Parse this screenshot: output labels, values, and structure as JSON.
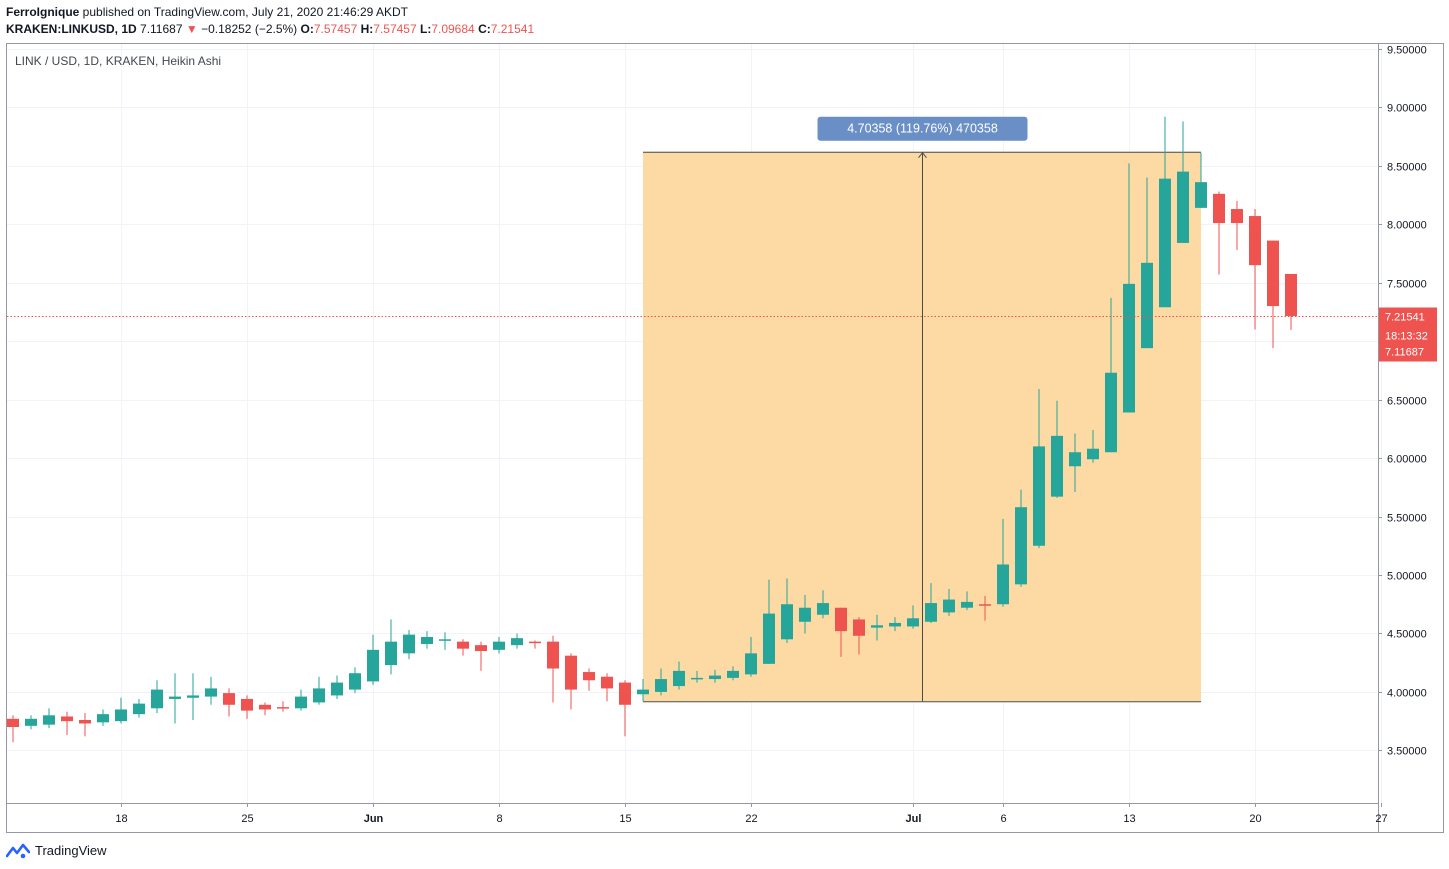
{
  "header": {
    "author": "FerroIgnique",
    "published": " published on TradingView.com, July 21, 2020 21:46:29 AKDT",
    "symbol": "KRAKEN:LINKUSD, 1D",
    "last": "7.11687",
    "change": "−0.18252 (−2.5%)",
    "o_label": "O:",
    "o_value": "7.57457",
    "h_label": "H:",
    "h_value": "7.57457",
    "l_label": "L:",
    "l_value": "7.09684",
    "c_label": "C:",
    "c_value": "7.21541"
  },
  "footer": {
    "brand": "TradingView"
  },
  "colors": {
    "up": "#26a69a",
    "down": "#ef5350",
    "range_fill": "#fdd89e",
    "range_label": "#6a8fc7"
  },
  "chart_data": {
    "type": "candlestick",
    "legend_text": "LINK / USD, 1D, KRAKEN, Heikin Ashi",
    "y_axis": {
      "min": 3.05,
      "max": 9.55,
      "ticks": [
        "3.50000",
        "4.00000",
        "4.50000",
        "5.00000",
        "5.50000",
        "6.00000",
        "6.50000",
        "7.00000",
        "7.50000",
        "8.00000",
        "8.50000",
        "9.00000",
        "9.50000"
      ]
    },
    "x_axis": {
      "start_date": "2020-05-12",
      "ticks": [
        {
          "i": 6,
          "label": "18"
        },
        {
          "i": 13,
          "label": "25"
        },
        {
          "i": 20,
          "label": "Jun"
        },
        {
          "i": 27,
          "label": "8"
        },
        {
          "i": 34,
          "label": "15"
        },
        {
          "i": 41,
          "label": "22"
        },
        {
          "i": 50,
          "label": "Jul"
        },
        {
          "i": 55,
          "label": "6"
        },
        {
          "i": 62,
          "label": "13"
        },
        {
          "i": 69,
          "label": "20"
        },
        {
          "i": 76,
          "label": "27"
        }
      ]
    },
    "candles": [
      {
        "date": "2020-05-12",
        "o": 3.77,
        "h": 3.8,
        "l": 3.57,
        "c": 3.7
      },
      {
        "date": "2020-05-13",
        "o": 3.71,
        "h": 3.8,
        "l": 3.68,
        "c": 3.77
      },
      {
        "date": "2020-05-14",
        "o": 3.72,
        "h": 3.86,
        "l": 3.69,
        "c": 3.8
      },
      {
        "date": "2020-05-15",
        "o": 3.79,
        "h": 3.83,
        "l": 3.63,
        "c": 3.75
      },
      {
        "date": "2020-05-16",
        "o": 3.76,
        "h": 3.82,
        "l": 3.62,
        "c": 3.73
      },
      {
        "date": "2020-05-17",
        "o": 3.74,
        "h": 3.85,
        "l": 3.71,
        "c": 3.81
      },
      {
        "date": "2020-05-18",
        "o": 3.75,
        "h": 3.95,
        "l": 3.73,
        "c": 3.85
      },
      {
        "date": "2020-05-19",
        "o": 3.81,
        "h": 3.94,
        "l": 3.78,
        "c": 3.9
      },
      {
        "date": "2020-05-20",
        "o": 3.86,
        "h": 4.1,
        "l": 3.82,
        "c": 4.02
      },
      {
        "date": "2020-05-21",
        "o": 3.94,
        "h": 4.16,
        "l": 3.73,
        "c": 3.96
      },
      {
        "date": "2020-05-22",
        "o": 3.95,
        "h": 4.16,
        "l": 3.76,
        "c": 3.97
      },
      {
        "date": "2020-05-23",
        "o": 3.96,
        "h": 4.13,
        "l": 3.89,
        "c": 4.03
      },
      {
        "date": "2020-05-24",
        "o": 3.99,
        "h": 4.03,
        "l": 3.79,
        "c": 3.89
      },
      {
        "date": "2020-05-25",
        "o": 3.94,
        "h": 3.97,
        "l": 3.77,
        "c": 3.84
      },
      {
        "date": "2020-05-26",
        "o": 3.89,
        "h": 3.91,
        "l": 3.8,
        "c": 3.85
      },
      {
        "date": "2020-05-27",
        "o": 3.87,
        "h": 3.92,
        "l": 3.83,
        "c": 3.86
      },
      {
        "date": "2020-05-28",
        "o": 3.86,
        "h": 4.02,
        "l": 3.84,
        "c": 3.96
      },
      {
        "date": "2020-05-29",
        "o": 3.91,
        "h": 4.13,
        "l": 3.89,
        "c": 4.03
      },
      {
        "date": "2020-05-30",
        "o": 3.97,
        "h": 4.14,
        "l": 3.94,
        "c": 4.08
      },
      {
        "date": "2020-05-31",
        "o": 4.02,
        "h": 4.21,
        "l": 3.99,
        "c": 4.16
      },
      {
        "date": "2020-06-01",
        "o": 4.09,
        "h": 4.49,
        "l": 4.06,
        "c": 4.36
      },
      {
        "date": "2020-06-02",
        "o": 4.23,
        "h": 4.62,
        "l": 4.15,
        "c": 4.43
      },
      {
        "date": "2020-06-03",
        "o": 4.33,
        "h": 4.53,
        "l": 4.28,
        "c": 4.49
      },
      {
        "date": "2020-06-04",
        "o": 4.41,
        "h": 4.52,
        "l": 4.37,
        "c": 4.47
      },
      {
        "date": "2020-06-05",
        "o": 4.44,
        "h": 4.51,
        "l": 4.36,
        "c": 4.45
      },
      {
        "date": "2020-06-06",
        "o": 4.43,
        "h": 4.45,
        "l": 4.31,
        "c": 4.37
      },
      {
        "date": "2020-06-07",
        "o": 4.4,
        "h": 4.43,
        "l": 4.18,
        "c": 4.35
      },
      {
        "date": "2020-06-08",
        "o": 4.36,
        "h": 4.47,
        "l": 4.33,
        "c": 4.43
      },
      {
        "date": "2020-06-09",
        "o": 4.4,
        "h": 4.5,
        "l": 4.37,
        "c": 4.46
      },
      {
        "date": "2020-06-10",
        "o": 4.43,
        "h": 4.44,
        "l": 4.37,
        "c": 4.42
      },
      {
        "date": "2020-06-11",
        "o": 4.43,
        "h": 4.48,
        "l": 3.91,
        "c": 4.2
      },
      {
        "date": "2020-06-12",
        "o": 4.31,
        "h": 4.33,
        "l": 3.85,
        "c": 4.02
      },
      {
        "date": "2020-06-13",
        "o": 4.17,
        "h": 4.2,
        "l": 4.01,
        "c": 4.1
      },
      {
        "date": "2020-06-14",
        "o": 4.13,
        "h": 4.16,
        "l": 3.92,
        "c": 4.03
      },
      {
        "date": "2020-06-15",
        "o": 4.08,
        "h": 4.1,
        "l": 3.62,
        "c": 3.89
      },
      {
        "date": "2020-06-16",
        "o": 3.98,
        "h": 4.11,
        "l": 3.92,
        "c": 4.02
      },
      {
        "date": "2020-06-17",
        "o": 4.0,
        "h": 4.2,
        "l": 3.97,
        "c": 4.11
      },
      {
        "date": "2020-06-18",
        "o": 4.05,
        "h": 4.26,
        "l": 4.02,
        "c": 4.18
      },
      {
        "date": "2020-06-19",
        "o": 4.11,
        "h": 4.18,
        "l": 4.08,
        "c": 4.12
      },
      {
        "date": "2020-06-20",
        "o": 4.11,
        "h": 4.19,
        "l": 4.08,
        "c": 4.14
      },
      {
        "date": "2020-06-21",
        "o": 4.12,
        "h": 4.22,
        "l": 4.1,
        "c": 4.18
      },
      {
        "date": "2020-06-22",
        "o": 4.15,
        "h": 4.47,
        "l": 4.13,
        "c": 4.33
      },
      {
        "date": "2020-06-23",
        "o": 4.24,
        "h": 4.96,
        "l": 4.24,
        "c": 4.67
      },
      {
        "date": "2020-06-24",
        "o": 4.45,
        "h": 4.97,
        "l": 4.42,
        "c": 4.75
      },
      {
        "date": "2020-06-25",
        "o": 4.6,
        "h": 4.83,
        "l": 4.5,
        "c": 4.72
      },
      {
        "date": "2020-06-26",
        "o": 4.66,
        "h": 4.87,
        "l": 4.63,
        "c": 4.76
      },
      {
        "date": "2020-06-27",
        "o": 4.72,
        "h": 4.72,
        "l": 4.3,
        "c": 4.52
      },
      {
        "date": "2020-06-28",
        "o": 4.62,
        "h": 4.64,
        "l": 4.32,
        "c": 4.48
      },
      {
        "date": "2020-06-29",
        "o": 4.55,
        "h": 4.66,
        "l": 4.44,
        "c": 4.57
      },
      {
        "date": "2020-06-30",
        "o": 4.56,
        "h": 4.64,
        "l": 4.52,
        "c": 4.59
      },
      {
        "date": "2020-07-01",
        "o": 4.56,
        "h": 4.74,
        "l": 4.54,
        "c": 4.63
      },
      {
        "date": "2020-07-02",
        "o": 4.6,
        "h": 4.93,
        "l": 4.59,
        "c": 4.76
      },
      {
        "date": "2020-07-03",
        "o": 4.68,
        "h": 4.88,
        "l": 4.65,
        "c": 4.79
      },
      {
        "date": "2020-07-04",
        "o": 4.72,
        "h": 4.86,
        "l": 4.7,
        "c": 4.77
      },
      {
        "date": "2020-07-05",
        "o": 4.75,
        "h": 4.82,
        "l": 4.61,
        "c": 4.74
      },
      {
        "date": "2020-07-06",
        "o": 4.75,
        "h": 5.48,
        "l": 4.73,
        "c": 5.09
      },
      {
        "date": "2020-07-07",
        "o": 4.92,
        "h": 5.73,
        "l": 4.9,
        "c": 5.58
      },
      {
        "date": "2020-07-08",
        "o": 5.25,
        "h": 6.59,
        "l": 5.23,
        "c": 6.1
      },
      {
        "date": "2020-07-09",
        "o": 5.67,
        "h": 6.49,
        "l": 5.66,
        "c": 6.19
      },
      {
        "date": "2020-07-10",
        "o": 5.93,
        "h": 6.21,
        "l": 5.71,
        "c": 6.05
      },
      {
        "date": "2020-07-11",
        "o": 5.99,
        "h": 6.24,
        "l": 5.96,
        "c": 6.08
      },
      {
        "date": "2020-07-12",
        "o": 6.05,
        "h": 7.37,
        "l": 6.05,
        "c": 6.73
      },
      {
        "date": "2020-07-13",
        "o": 6.39,
        "h": 8.52,
        "l": 6.39,
        "c": 7.49
      },
      {
        "date": "2020-07-14",
        "o": 6.94,
        "h": 8.4,
        "l": 6.94,
        "c": 7.67
      },
      {
        "date": "2020-07-15",
        "o": 7.29,
        "h": 8.92,
        "l": 7.29,
        "c": 8.39
      },
      {
        "date": "2020-07-16",
        "o": 7.84,
        "h": 8.88,
        "l": 7.84,
        "c": 8.45
      },
      {
        "date": "2020-07-17",
        "o": 8.14,
        "h": 8.61,
        "l": 8.14,
        "c": 8.36
      },
      {
        "date": "2020-07-18",
        "o": 8.26,
        "h": 8.28,
        "l": 7.57,
        "c": 8.01
      },
      {
        "date": "2020-07-19",
        "o": 8.13,
        "h": 8.2,
        "l": 7.78,
        "c": 8.01
      },
      {
        "date": "2020-07-20",
        "o": 8.07,
        "h": 8.13,
        "l": 7.1,
        "c": 7.65
      },
      {
        "date": "2020-07-21",
        "o": 7.86,
        "h": 7.86,
        "l": 6.94,
        "c": 7.3
      },
      {
        "date": "2020-07-22",
        "o": 7.57457,
        "h": 7.57457,
        "l": 7.09684,
        "c": 7.21541
      }
    ],
    "price_range": {
      "start_date": "2020-06-16",
      "end_date": "2020-07-17",
      "low": 3.92,
      "high": 8.62,
      "label": "4.70358 (119.76%) 470358"
    },
    "last_price": {
      "value": 7.21541,
      "label": "7.21541"
    },
    "countdown": {
      "label": "18:13:32",
      "price_label": "7.11687",
      "price_value": 7.11687
    }
  }
}
